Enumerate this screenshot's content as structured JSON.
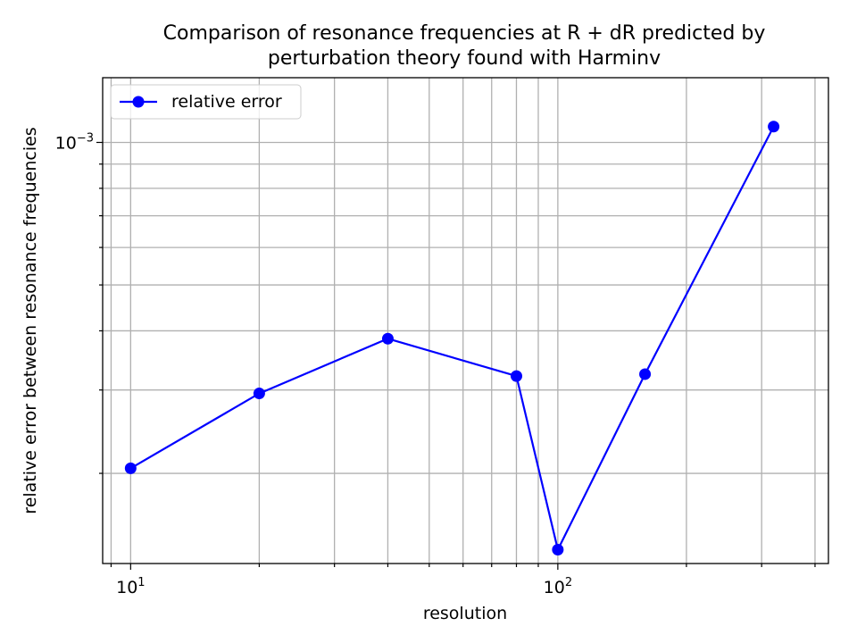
{
  "chart_data": {
    "type": "line",
    "title_line1": "Comparison of resonance frequencies at R + dR predicted by",
    "title_line2": "perturbation theory found with Harminv",
    "xlabel": "resolution",
    "ylabel": "relative error between resonance frequencies",
    "x_scale": "log",
    "y_scale": "log",
    "xlim": [
      8.6,
      430
    ],
    "ylim": [
      0.000129,
      0.00137
    ],
    "x_ticks": [
      {
        "value": 10,
        "label_base": "10",
        "label_exp": "1"
      },
      {
        "value": 100,
        "label_base": "10",
        "label_exp": "2"
      }
    ],
    "y_ticks": [
      {
        "value": 0.001,
        "label_base": "10",
        "label_exp": "−3"
      }
    ],
    "grid": true,
    "legend_position": "upper left",
    "series": [
      {
        "name": "relative error",
        "color": "#0000ff",
        "marker": "circle",
        "x": [
          10,
          20,
          40,
          80,
          100,
          160,
          320
        ],
        "y": [
          0.000205,
          0.000295,
          0.000385,
          0.000321,
          0.000138,
          0.000324,
          0.00108
        ]
      }
    ]
  }
}
